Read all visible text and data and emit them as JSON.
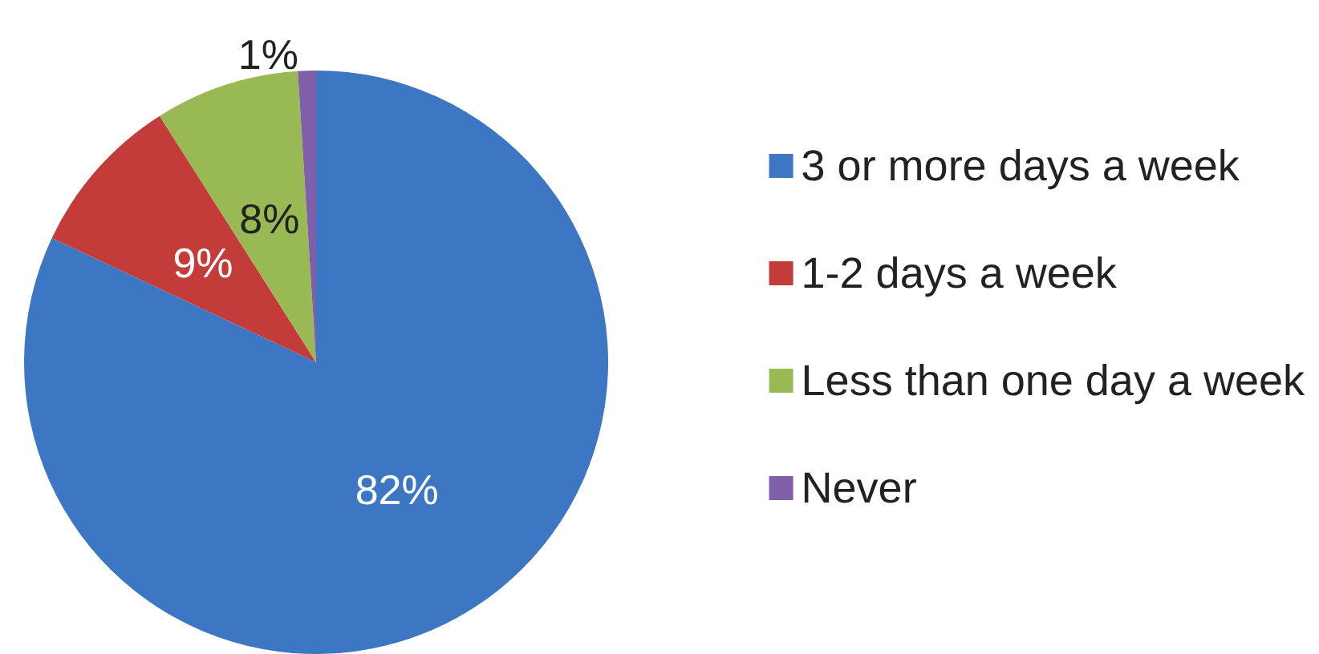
{
  "chart_data": {
    "type": "pie",
    "categories": [
      "3 or more days a week",
      "1-2 days a week",
      "Less than one day a week",
      "Never"
    ],
    "values": [
      82,
      9,
      8,
      1
    ],
    "colors": [
      "#3d77c4",
      "#c43c3a",
      "#98b954",
      "#7e5fa8"
    ],
    "value_labels": [
      "82%",
      "9%",
      "8%",
      "1%"
    ],
    "legend": "right"
  }
}
